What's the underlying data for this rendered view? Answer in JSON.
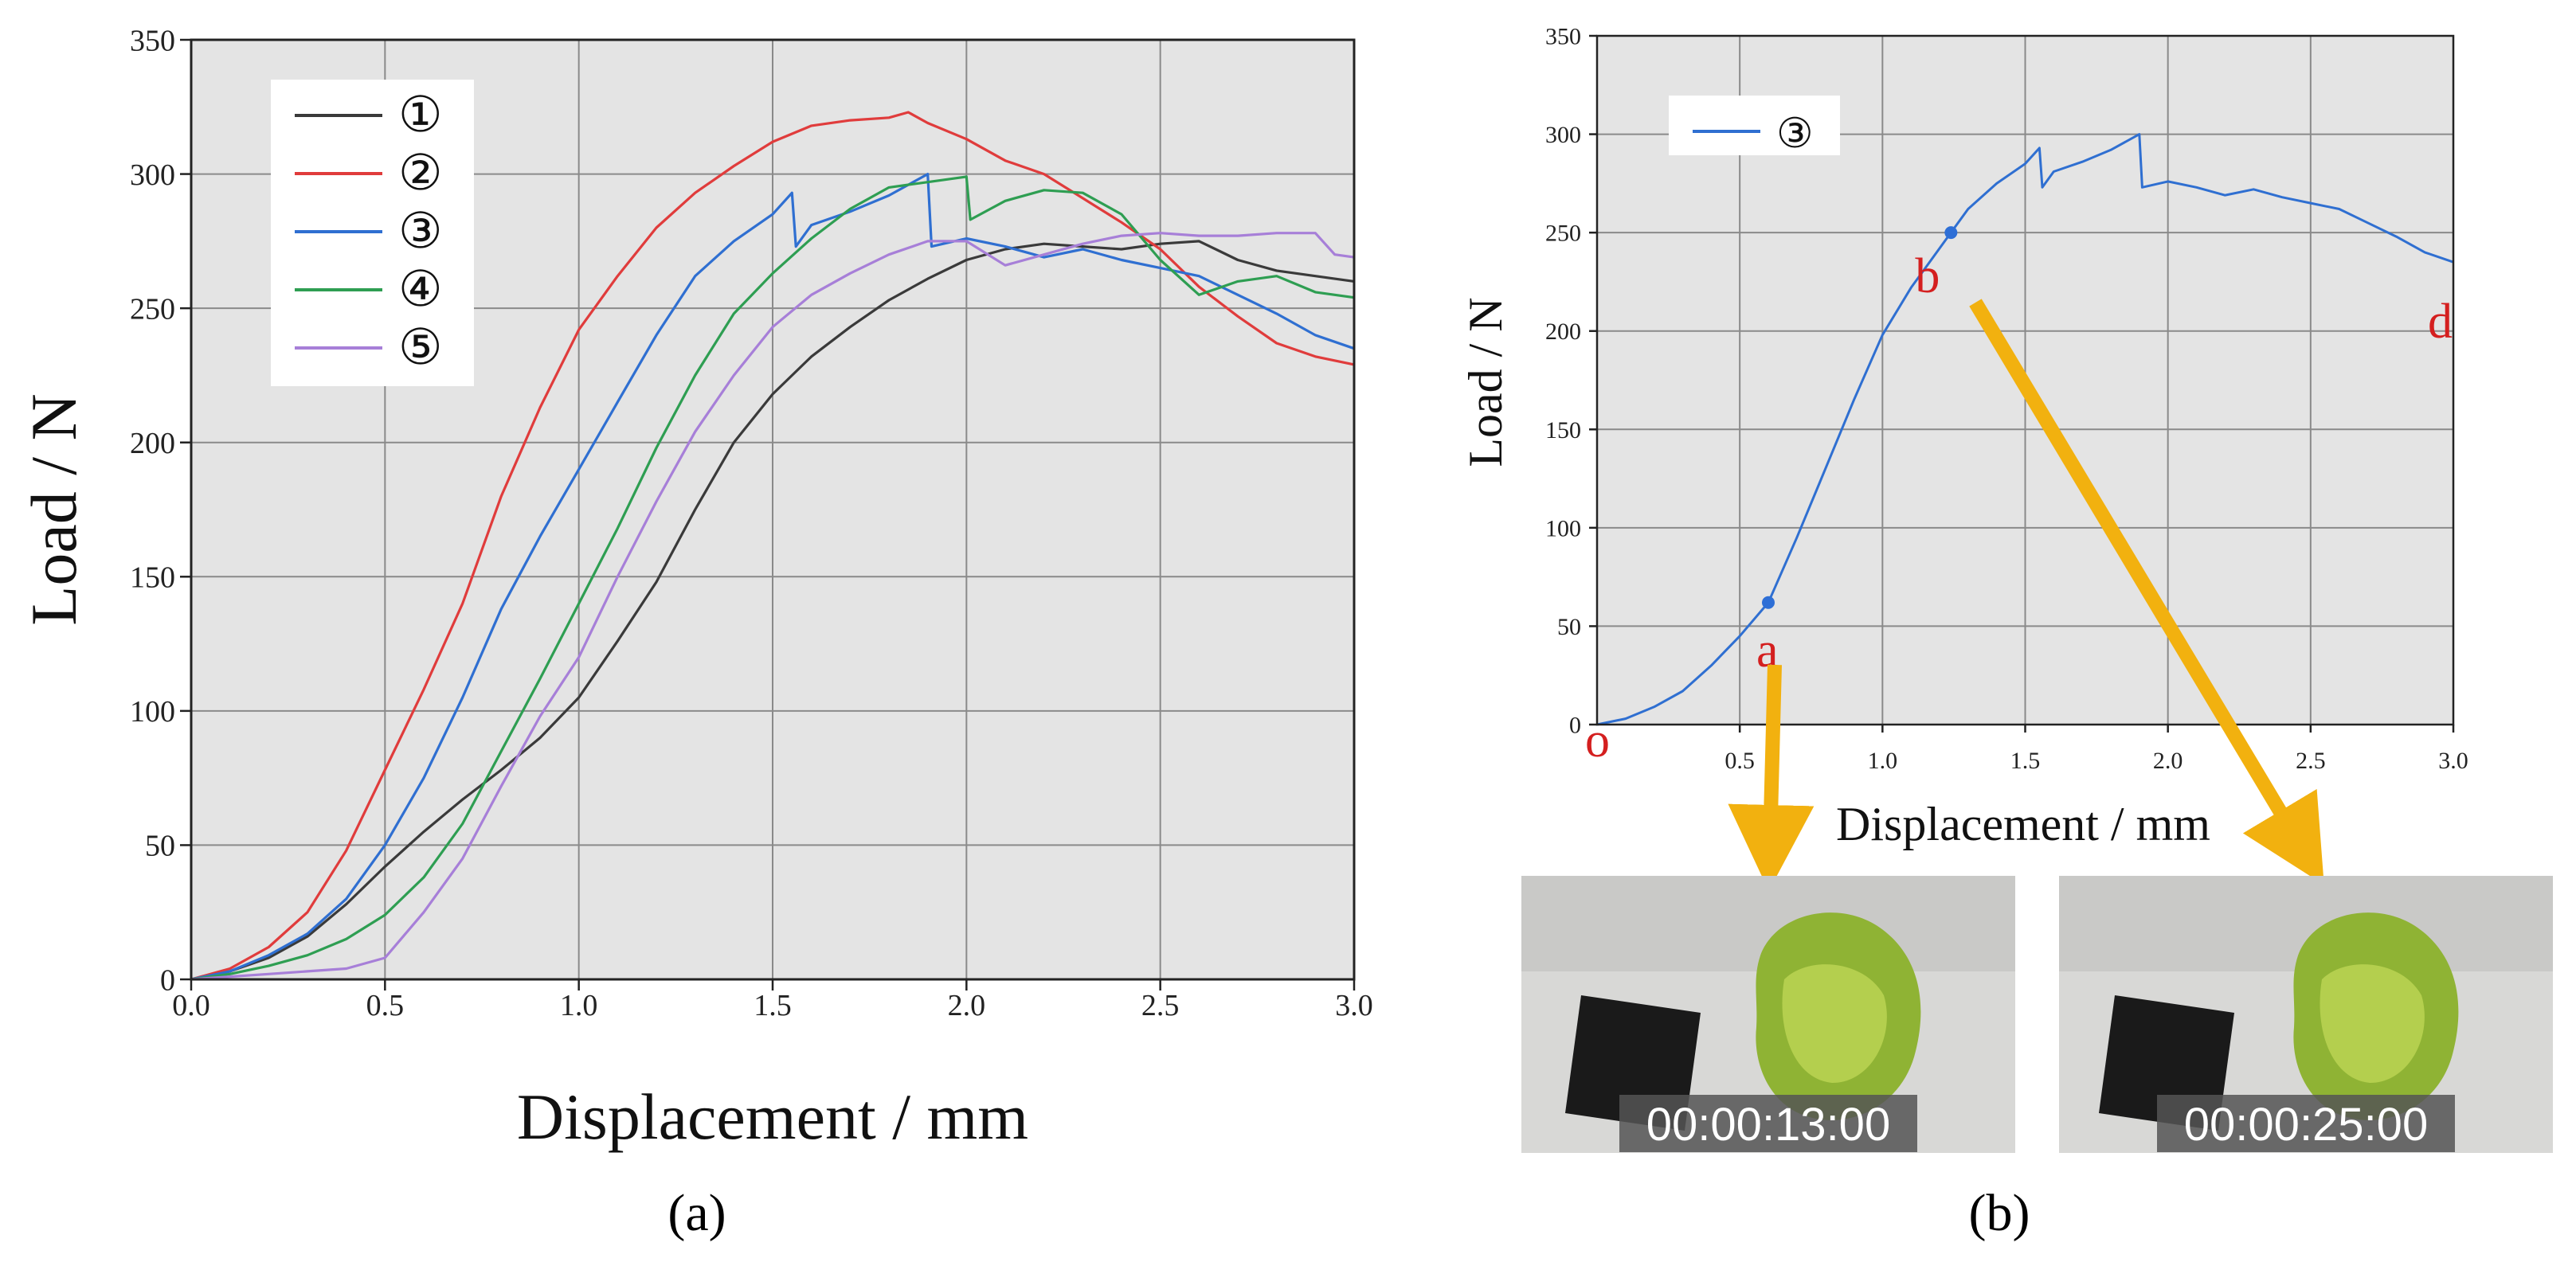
{
  "colors": {
    "plot_bg": "#e4e4e4",
    "grid": "#8a8a8a",
    "annotation_red": "#d41f1f",
    "arrow": "#f2b10f",
    "point_blue": "#2e6fd6"
  },
  "chart_data": [
    {
      "type": "line",
      "panel": "(a)",
      "xlabel": "Displacement / mm",
      "ylabel": "Load / N",
      "xlim": [
        0,
        3.0
      ],
      "ylim": [
        0,
        350
      ],
      "xticks": [
        "0.0",
        "0.5",
        "1.0",
        "1.5",
        "2.0",
        "2.5",
        "3.0"
      ],
      "yticks": [
        "0",
        "50",
        "100",
        "150",
        "200",
        "250",
        "300",
        "350"
      ],
      "grid": true,
      "legend_position": "top-left",
      "series": [
        {
          "name": "①",
          "color": "#3a3a3a",
          "x": [
            0,
            0.1,
            0.2,
            0.3,
            0.4,
            0.5,
            0.6,
            0.7,
            0.8,
            0.9,
            1.0,
            1.1,
            1.2,
            1.3,
            1.4,
            1.5,
            1.6,
            1.7,
            1.8,
            1.9,
            2.0,
            2.1,
            2.2,
            2.3,
            2.4,
            2.5,
            2.6,
            2.7,
            2.8,
            2.9,
            3.0
          ],
          "y": [
            0,
            3,
            8,
            16,
            28,
            42,
            55,
            67,
            78,
            90,
            105,
            126,
            148,
            175,
            200,
            218,
            232,
            243,
            253,
            261,
            268,
            272,
            274,
            273,
            272,
            274,
            275,
            268,
            264,
            262,
            260
          ]
        },
        {
          "name": "②",
          "color": "#e03c3c",
          "x": [
            0,
            0.1,
            0.2,
            0.3,
            0.4,
            0.5,
            0.6,
            0.7,
            0.8,
            0.9,
            1.0,
            1.1,
            1.2,
            1.3,
            1.4,
            1.5,
            1.6,
            1.7,
            1.8,
            1.85,
            1.9,
            2.0,
            2.1,
            2.2,
            2.3,
            2.4,
            2.5,
            2.6,
            2.7,
            2.8,
            2.9,
            3.0
          ],
          "y": [
            0,
            4,
            12,
            25,
            48,
            78,
            108,
            140,
            180,
            213,
            242,
            262,
            280,
            293,
            303,
            312,
            318,
            320,
            321,
            323,
            319,
            313,
            305,
            300,
            291,
            282,
            272,
            258,
            247,
            237,
            232,
            229
          ]
        },
        {
          "name": "③",
          "color": "#2f6fd1",
          "x": [
            0,
            0.1,
            0.2,
            0.3,
            0.4,
            0.5,
            0.6,
            0.7,
            0.8,
            0.9,
            1.0,
            1.1,
            1.2,
            1.3,
            1.4,
            1.5,
            1.55,
            1.56,
            1.6,
            1.7,
            1.8,
            1.9,
            1.91,
            2.0,
            2.1,
            2.2,
            2.3,
            2.4,
            2.5,
            2.6,
            2.7,
            2.8,
            2.9,
            3.0
          ],
          "y": [
            0,
            3,
            9,
            17,
            30,
            50,
            75,
            105,
            138,
            165,
            190,
            215,
            240,
            262,
            275,
            285,
            293,
            273,
            281,
            286,
            292,
            300,
            273,
            276,
            273,
            269,
            272,
            268,
            265,
            262,
            255,
            248,
            240,
            235
          ]
        },
        {
          "name": "④",
          "color": "#2e9e52",
          "x": [
            0,
            0.1,
            0.2,
            0.3,
            0.4,
            0.5,
            0.6,
            0.7,
            0.8,
            0.9,
            1.0,
            1.1,
            1.2,
            1.3,
            1.4,
            1.5,
            1.6,
            1.7,
            1.8,
            1.9,
            2.0,
            2.01,
            2.1,
            2.2,
            2.3,
            2.4,
            2.5,
            2.6,
            2.7,
            2.8,
            2.9,
            3.0
          ],
          "y": [
            0,
            2,
            5,
            9,
            15,
            24,
            38,
            58,
            85,
            112,
            140,
            168,
            198,
            225,
            248,
            263,
            276,
            287,
            295,
            297,
            299,
            283,
            290,
            294,
            293,
            285,
            268,
            255,
            260,
            262,
            256,
            254
          ]
        },
        {
          "name": "⑤",
          "color": "#a77fd8",
          "x": [
            0,
            0.1,
            0.2,
            0.3,
            0.4,
            0.5,
            0.6,
            0.7,
            0.8,
            0.9,
            1.0,
            1.1,
            1.2,
            1.3,
            1.4,
            1.5,
            1.6,
            1.7,
            1.8,
            1.9,
            2.0,
            2.1,
            2.2,
            2.3,
            2.4,
            2.5,
            2.6,
            2.7,
            2.8,
            2.9,
            2.95,
            3.0
          ],
          "y": [
            0,
            1,
            2,
            3,
            4,
            8,
            25,
            45,
            72,
            98,
            120,
            150,
            178,
            204,
            225,
            243,
            255,
            263,
            270,
            275,
            275,
            266,
            270,
            274,
            277,
            278,
            277,
            277,
            278,
            278,
            270,
            269
          ]
        }
      ]
    },
    {
      "type": "line",
      "panel": "(b)",
      "xlabel": "Displacement / mm",
      "ylabel": "Load / N",
      "xlim": [
        0,
        3.0
      ],
      "ylim": [
        0,
        350
      ],
      "xticks": [
        "0.5",
        "1.0",
        "1.5",
        "2.0",
        "2.5",
        "3.0"
      ],
      "yticks": [
        "0",
        "50",
        "100",
        "150",
        "200",
        "250",
        "300",
        "350"
      ],
      "grid": true,
      "legend_position": "top-left",
      "series": [
        {
          "name": "③",
          "color": "#2f6fd1",
          "x": [
            0,
            0.1,
            0.2,
            0.3,
            0.4,
            0.5,
            0.6,
            0.7,
            0.8,
            0.9,
            1.0,
            1.1,
            1.2,
            1.24,
            1.3,
            1.4,
            1.5,
            1.55,
            1.56,
            1.6,
            1.7,
            1.8,
            1.9,
            1.91,
            2.0,
            2.1,
            2.2,
            2.3,
            2.4,
            2.5,
            2.6,
            2.7,
            2.8,
            2.9,
            3.0
          ],
          "y": [
            0,
            3,
            9,
            17,
            30,
            45,
            62,
            95,
            130,
            165,
            198,
            222,
            242,
            250,
            262,
            275,
            285,
            293,
            273,
            281,
            286,
            292,
            300,
            273,
            276,
            273,
            269,
            272,
            268,
            265,
            262,
            255,
            248,
            240,
            235
          ]
        }
      ],
      "annotations": [
        {
          "label": "o",
          "x": 0,
          "y": 0
        },
        {
          "label": "a",
          "x": 0.6,
          "y": 62,
          "marker": true
        },
        {
          "label": "b",
          "x": 1.24,
          "y": 250,
          "marker": true
        },
        {
          "label": "d",
          "x": 3.0,
          "y": 235
        }
      ]
    }
  ],
  "photos": [
    {
      "timestamp": "00:00:13:00"
    },
    {
      "timestamp": "00:00:25:00"
    }
  ],
  "panel_labels": [
    "(a)",
    "(b)"
  ]
}
